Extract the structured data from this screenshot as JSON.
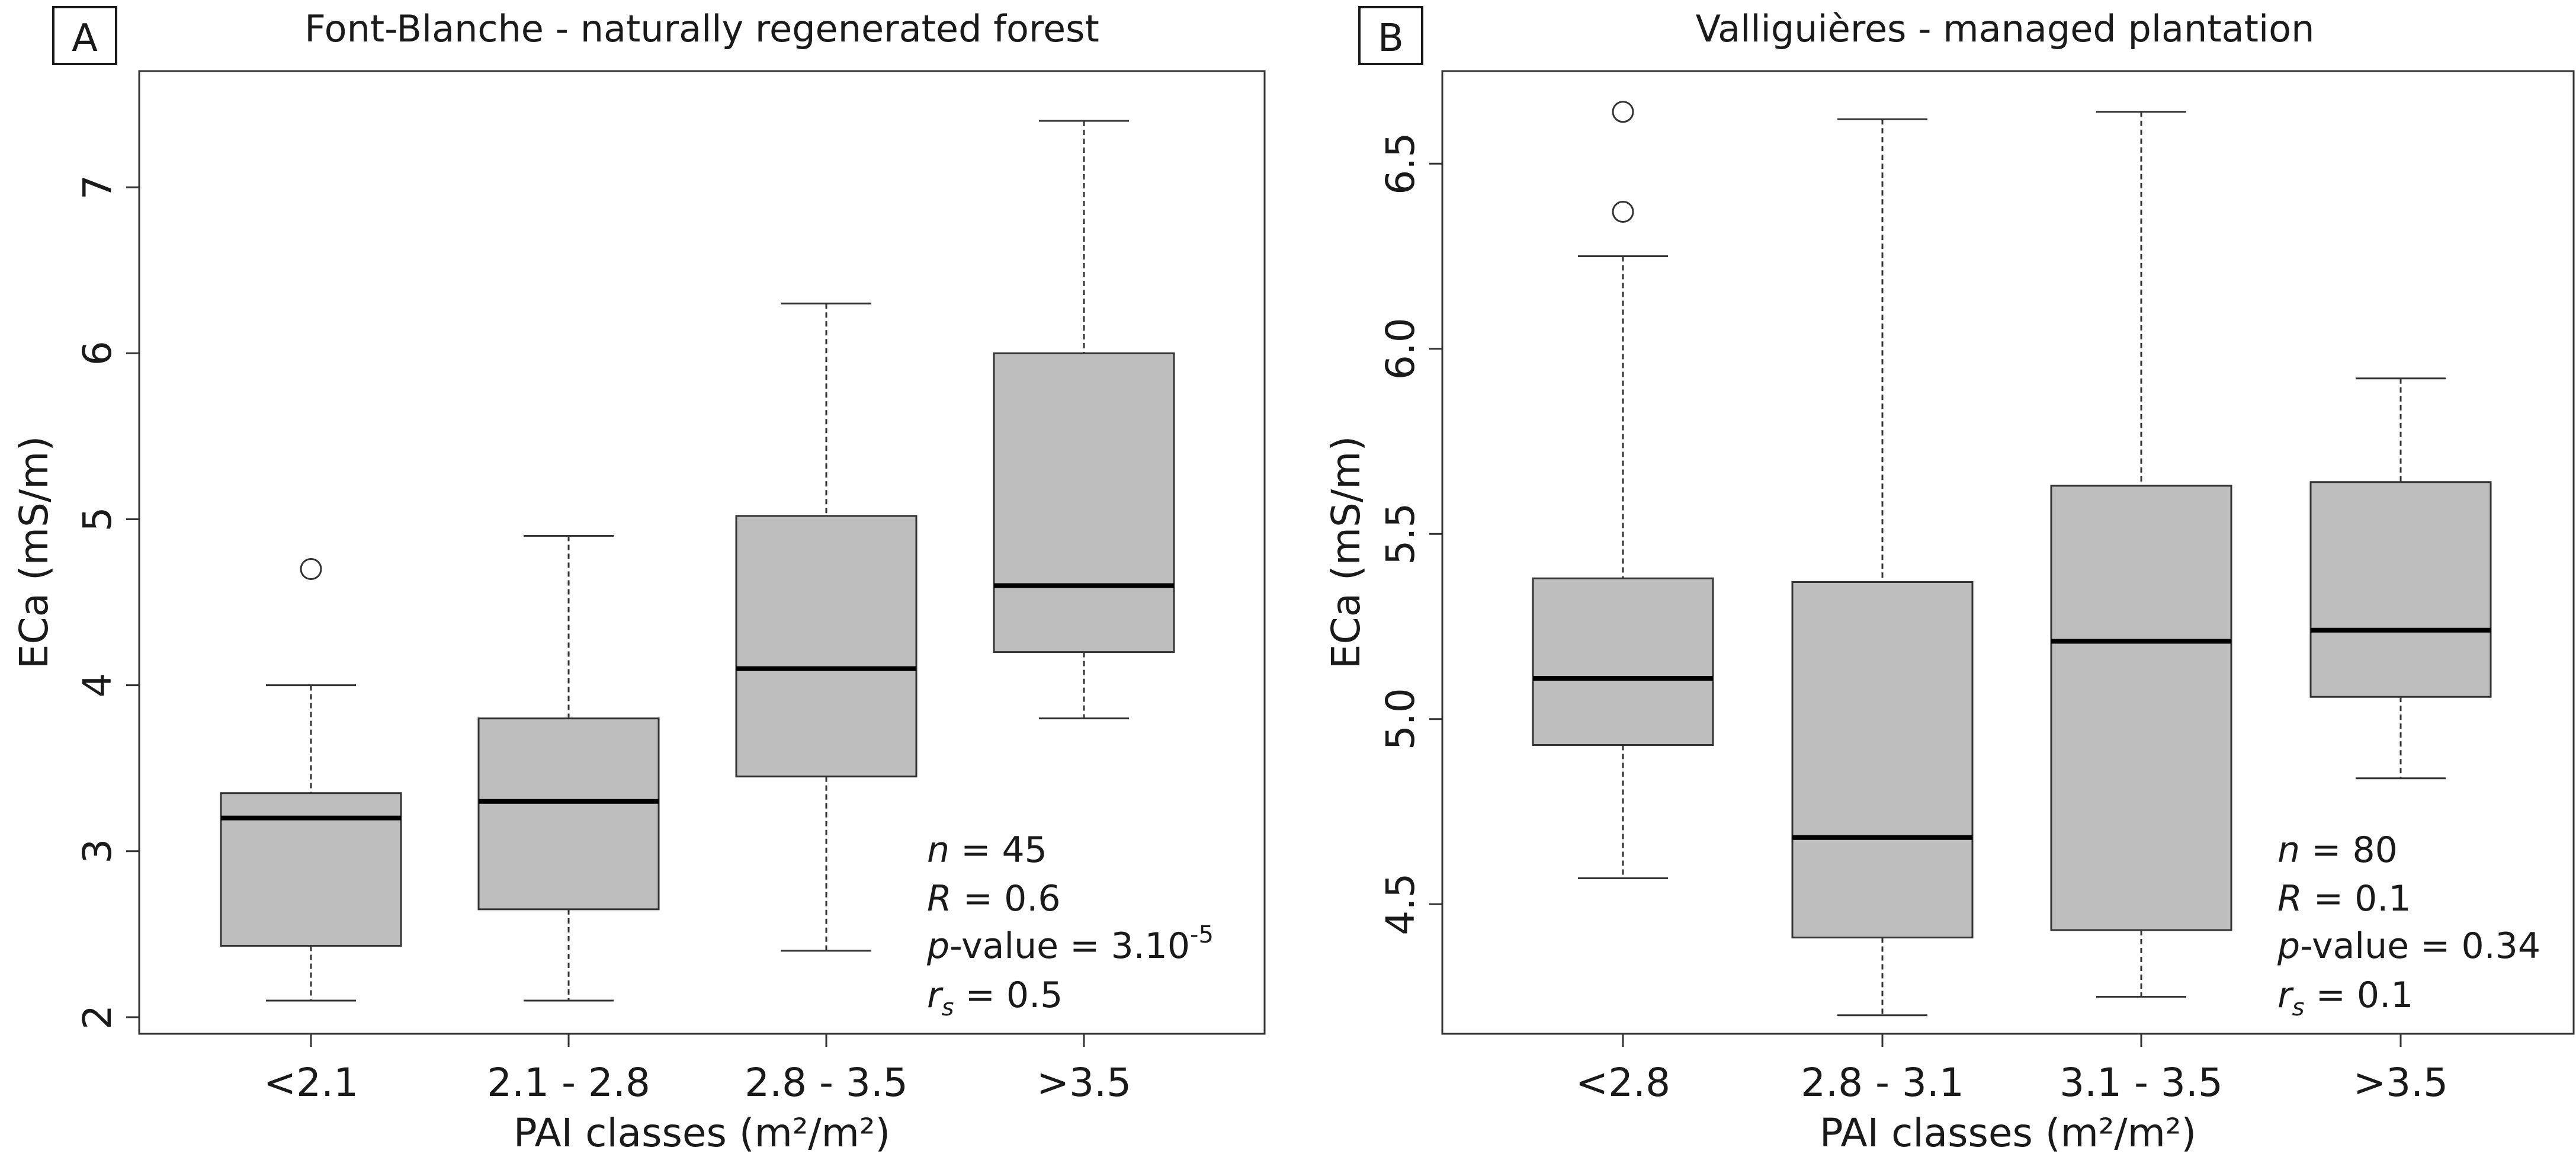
{
  "chart_data": [
    {
      "type": "box",
      "panel_label": "A",
      "title": "Font-Blanche - naturally regenerated forest",
      "xlabel": "PAI classes (m²/m²)",
      "ylabel": "ECa (mS/m)",
      "ylim": [
        1.9,
        7.7
      ],
      "yticks": [
        2,
        3,
        4,
        5,
        6,
        7
      ],
      "ytick_labels": [
        "2",
        "3",
        "4",
        "5",
        "6",
        "7"
      ],
      "categories": [
        "<2.1",
        "2.1 - 2.8",
        "2.8 - 3.5",
        ">3.5"
      ],
      "boxes": [
        {
          "whisker_low": 2.1,
          "q1": 2.43,
          "median": 3.2,
          "q3": 3.35,
          "whisker_high": 4.0,
          "outliers": [
            4.7
          ]
        },
        {
          "whisker_low": 2.1,
          "q1": 2.65,
          "median": 3.3,
          "q3": 3.8,
          "whisker_high": 4.9,
          "outliers": []
        },
        {
          "whisker_low": 2.4,
          "q1": 3.45,
          "median": 4.1,
          "q3": 5.02,
          "whisker_high": 6.3,
          "outliers": []
        },
        {
          "whisker_low": 3.8,
          "q1": 4.2,
          "median": 4.6,
          "q3": 6.0,
          "whisker_high": 7.4,
          "outliers": []
        }
      ],
      "stats": {
        "n_var": "n",
        "n_text": " = 45",
        "r_var": "R",
        "r_text": " = 0.6",
        "p_var": "p",
        "p_text": "-value = 3.10",
        "p_exp": "-5",
        "rs_var": "r",
        "rs_sub": "s",
        "rs_text": " = 0.5"
      }
    },
    {
      "type": "box",
      "panel_label": "B",
      "title": "Valliguières - managed plantation",
      "xlabel": "PAI classes (m²/m²)",
      "ylabel": "ECa (mS/m)",
      "ylim": [
        4.15,
        6.75
      ],
      "yticks": [
        4.5,
        5.0,
        5.5,
        6.0,
        6.5
      ],
      "ytick_labels": [
        "4.5",
        "5.0",
        "5.5",
        "6.0",
        "6.5"
      ],
      "categories": [
        "<2.8",
        "2.8 - 3.1",
        "3.1 - 3.5",
        ">3.5"
      ],
      "boxes": [
        {
          "whisker_low": 4.57,
          "q1": 4.93,
          "median": 5.11,
          "q3": 5.38,
          "whisker_high": 6.25,
          "outliers": [
            6.37,
            6.64
          ]
        },
        {
          "whisker_low": 4.2,
          "q1": 4.41,
          "median": 4.68,
          "q3": 5.37,
          "whisker_high": 6.62,
          "outliers": []
        },
        {
          "whisker_low": 4.25,
          "q1": 4.43,
          "median": 5.21,
          "q3": 5.63,
          "whisker_high": 6.64,
          "outliers": []
        },
        {
          "whisker_low": 4.84,
          "q1": 5.06,
          "median": 5.24,
          "q3": 5.64,
          "whisker_high": 5.92,
          "outliers": []
        }
      ],
      "stats": {
        "n_var": "n",
        "n_text": " = 80",
        "r_var": "R",
        "r_text": " = 0.1",
        "p_var": "p",
        "p_text": "-value = 0.34",
        "p_exp": "",
        "rs_var": "r",
        "rs_sub": "s",
        "rs_text": " = 0.1"
      }
    }
  ]
}
